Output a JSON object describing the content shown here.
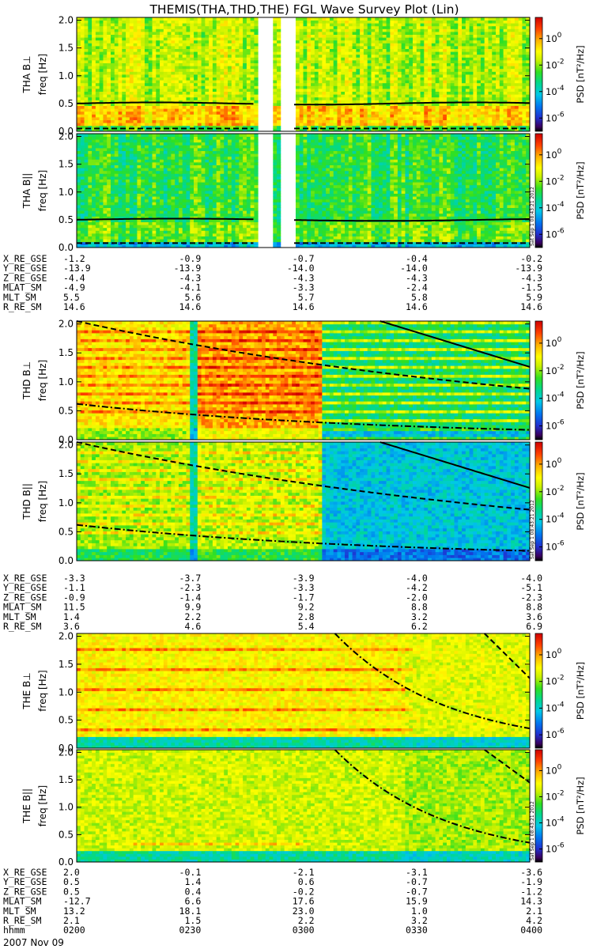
{
  "chart_data": {
    "type": "heatmap",
    "title": "THEMIS(THA,THD,THE) FGL Wave Survey Plot (Lin)",
    "date_label": "2007 Nov 09",
    "stamp": "Sat Sep 1 08:43:21 2012",
    "colorbar": {
      "label": "PSD [nT²/Hz]",
      "ticks": [
        {
          "base": "10",
          "exp": "0",
          "value": 0
        },
        {
          "base": "10",
          "exp": "-2",
          "value": -2
        },
        {
          "base": "10",
          "exp": "-4",
          "value": -4
        },
        {
          "base": "10",
          "exp": "-6",
          "value": -6
        }
      ]
    },
    "freq_ticks": [
      "0.0",
      "0.5",
      "1.0",
      "1.5",
      "2.0"
    ],
    "ylim": [
      0,
      2
    ],
    "panels": [
      {
        "id": "tha-bperp",
        "ylabel": "THA B⊥",
        "unit": "freq [Hz]"
      },
      {
        "id": "tha-bpar",
        "ylabel": "THA B||",
        "unit": "freq [Hz]"
      },
      {
        "id": "thd-bperp",
        "ylabel": "THD B⊥",
        "unit": "freq [Hz]"
      },
      {
        "id": "thd-bpar",
        "ylabel": "THD B||",
        "unit": "freq [Hz]"
      },
      {
        "id": "the-bperp",
        "ylabel": "THE B⊥",
        "unit": "freq [Hz]"
      },
      {
        "id": "the-bpar",
        "ylabel": "THE B||",
        "unit": "freq [Hz]"
      }
    ],
    "ephemeris": [
      {
        "probe": "THA",
        "rows": [
          {
            "label": "X_RE_GSE",
            "values": [
              "-1.2",
              "-0.9",
              "-0.7",
              "-0.4",
              "-0.2"
            ]
          },
          {
            "label": "Y_RE_GSE",
            "values": [
              "-13.9",
              "-13.9",
              "-14.0",
              "-14.0",
              "-13.9"
            ]
          },
          {
            "label": "Z_RE_GSE",
            "values": [
              "-4.4",
              "-4.3",
              "-4.3",
              "-4.3",
              "-4.3"
            ]
          },
          {
            "label": "MLAT_SM",
            "values": [
              "-4.9",
              "-4.1",
              "-3.3",
              "-2.4",
              "-1.5"
            ]
          },
          {
            "label": "MLT_SM",
            "values": [
              "5.5",
              "5.6",
              "5.7",
              "5.8",
              "5.9"
            ]
          },
          {
            "label": "R_RE_SM",
            "values": [
              "14.6",
              "14.6",
              "14.6",
              "14.6",
              "14.6"
            ]
          }
        ]
      },
      {
        "probe": "THD",
        "rows": [
          {
            "label": "X_RE_GSE",
            "values": [
              "-3.3",
              "-3.7",
              "-3.9",
              "-4.0",
              "-4.0"
            ]
          },
          {
            "label": "Y_RE_GSE",
            "values": [
              "-1.1",
              "-2.3",
              "-3.3",
              "-4.2",
              "-5.1"
            ]
          },
          {
            "label": "Z_RE_GSE",
            "values": [
              "-0.9",
              "-1.4",
              "-1.7",
              "-2.0",
              "-2.3"
            ]
          },
          {
            "label": "MLAT_SM",
            "values": [
              "11.5",
              "9.9",
              "9.2",
              "8.8",
              "8.8"
            ]
          },
          {
            "label": "MLT_SM",
            "values": [
              "1.4",
              "2.2",
              "2.8",
              "3.2",
              "3.6"
            ]
          },
          {
            "label": "R_RE_SM",
            "values": [
              "3.6",
              "4.6",
              "5.4",
              "6.2",
              "6.9"
            ]
          }
        ]
      },
      {
        "probe": "THE",
        "rows": [
          {
            "label": "X_RE_GSE",
            "values": [
              "2.0",
              "-0.1",
              "-2.1",
              "-3.1",
              "-3.6"
            ]
          },
          {
            "label": "Y_RE_GSE",
            "values": [
              "0.5",
              "1.4",
              "0.6",
              "-0.7",
              "-1.9"
            ]
          },
          {
            "label": "Z_RE_GSE",
            "values": [
              "0.5",
              "0.4",
              "-0.2",
              "-0.7",
              "-1.2"
            ]
          },
          {
            "label": "MLAT_SM",
            "values": [
              "-12.7",
              "6.6",
              "17.6",
              "15.9",
              "14.3"
            ]
          },
          {
            "label": "MLT_SM",
            "values": [
              "13.2",
              "18.1",
              "23.0",
              "1.0",
              "2.1"
            ]
          },
          {
            "label": "R_RE_SM",
            "values": [
              "2.1",
              "1.5",
              "2.2",
              "3.2",
              "4.2"
            ]
          },
          {
            "label": "hhmm",
            "values": [
              "0200",
              "0230",
              "0300",
              "0330",
              "0400"
            ]
          }
        ]
      }
    ]
  }
}
